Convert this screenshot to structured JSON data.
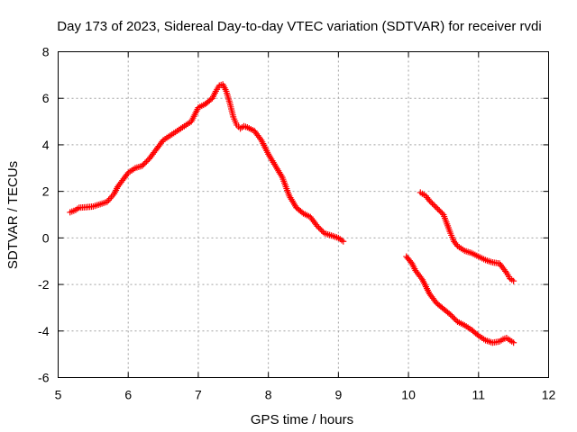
{
  "chart_data": {
    "type": "scatter",
    "title": "Day 173 of 2023, Sidereal Day-to-day VTEC variation (SDTVAR) for receiver rvdi",
    "xlabel": "GPS time / hours",
    "ylabel": "SDTVAR / TECUs",
    "xlim": [
      5,
      12
    ],
    "ylim": [
      -6,
      8
    ],
    "xticks": [
      "5",
      "6",
      "7",
      "8",
      "9",
      "10",
      "11",
      "12"
    ],
    "yticks": [
      "-6",
      "-4",
      "-2",
      "0",
      "2",
      "4",
      "6",
      "8"
    ],
    "grid": true,
    "legend": "none",
    "marker": "plus",
    "color": "#ff0000",
    "series": [
      {
        "points": [
          [
            5.17,
            1.1
          ],
          [
            5.25,
            1.2
          ],
          [
            5.3,
            1.3
          ],
          [
            5.4,
            1.32
          ],
          [
            5.5,
            1.35
          ],
          [
            5.6,
            1.45
          ],
          [
            5.7,
            1.55
          ],
          [
            5.8,
            1.9
          ],
          [
            5.85,
            2.2
          ],
          [
            5.9,
            2.4
          ],
          [
            5.95,
            2.6
          ],
          [
            6.0,
            2.8
          ],
          [
            6.1,
            3.0
          ],
          [
            6.2,
            3.1
          ],
          [
            6.3,
            3.4
          ],
          [
            6.4,
            3.8
          ],
          [
            6.5,
            4.2
          ],
          [
            6.6,
            4.4
          ],
          [
            6.7,
            4.6
          ],
          [
            6.8,
            4.8
          ],
          [
            6.9,
            5.0
          ],
          [
            6.95,
            5.3
          ],
          [
            7.0,
            5.6
          ],
          [
            7.1,
            5.75
          ],
          [
            7.2,
            6.0
          ],
          [
            7.25,
            6.3
          ],
          [
            7.3,
            6.55
          ],
          [
            7.35,
            6.6
          ],
          [
            7.4,
            6.3
          ],
          [
            7.45,
            5.8
          ],
          [
            7.5,
            5.2
          ],
          [
            7.55,
            4.85
          ],
          [
            7.6,
            4.7
          ],
          [
            7.65,
            4.8
          ],
          [
            7.7,
            4.75
          ],
          [
            7.8,
            4.6
          ],
          [
            7.9,
            4.2
          ],
          [
            8.0,
            3.6
          ],
          [
            8.1,
            3.1
          ],
          [
            8.2,
            2.6
          ],
          [
            8.3,
            1.8
          ],
          [
            8.4,
            1.3
          ],
          [
            8.5,
            1.05
          ],
          [
            8.6,
            0.9
          ],
          [
            8.7,
            0.5
          ],
          [
            8.8,
            0.2
          ],
          [
            8.9,
            0.1
          ],
          [
            9.0,
            0.0
          ],
          [
            9.07,
            -0.15
          ]
        ]
      },
      {
        "points": [
          [
            10.17,
            1.95
          ],
          [
            10.25,
            1.8
          ],
          [
            10.3,
            1.6
          ],
          [
            10.4,
            1.3
          ],
          [
            10.5,
            1.0
          ],
          [
            10.55,
            0.6
          ],
          [
            10.6,
            0.2
          ],
          [
            10.65,
            -0.15
          ],
          [
            10.7,
            -0.35
          ],
          [
            10.8,
            -0.55
          ],
          [
            10.9,
            -0.65
          ],
          [
            11.0,
            -0.8
          ],
          [
            11.1,
            -0.95
          ],
          [
            11.2,
            -1.05
          ],
          [
            11.3,
            -1.1
          ],
          [
            11.35,
            -1.3
          ],
          [
            11.4,
            -1.5
          ],
          [
            11.45,
            -1.75
          ],
          [
            11.5,
            -1.85
          ]
        ]
      },
      {
        "points": [
          [
            9.97,
            -0.8
          ],
          [
            10.05,
            -1.1
          ],
          [
            10.1,
            -1.4
          ],
          [
            10.2,
            -1.8
          ],
          [
            10.3,
            -2.4
          ],
          [
            10.4,
            -2.8
          ],
          [
            10.5,
            -3.05
          ],
          [
            10.6,
            -3.3
          ],
          [
            10.7,
            -3.6
          ],
          [
            10.8,
            -3.75
          ],
          [
            10.9,
            -3.95
          ],
          [
            11.0,
            -4.2
          ],
          [
            11.1,
            -4.4
          ],
          [
            11.2,
            -4.5
          ],
          [
            11.3,
            -4.45
          ],
          [
            11.35,
            -4.35
          ],
          [
            11.4,
            -4.3
          ],
          [
            11.45,
            -4.4
          ],
          [
            11.5,
            -4.5
          ]
        ]
      }
    ]
  }
}
